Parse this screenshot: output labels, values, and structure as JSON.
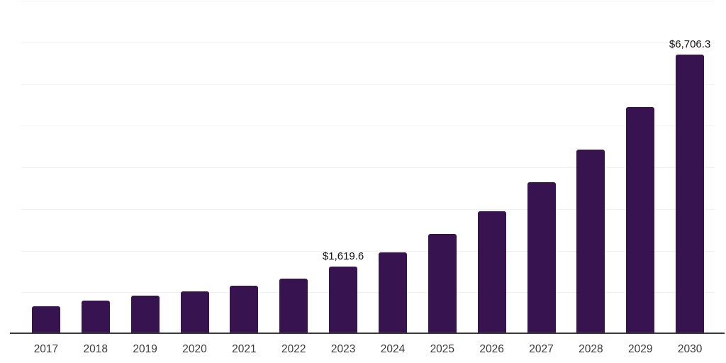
{
  "chart_data": {
    "type": "bar",
    "categories": [
      "2017",
      "2018",
      "2019",
      "2020",
      "2021",
      "2022",
      "2023",
      "2024",
      "2025",
      "2026",
      "2027",
      "2028",
      "2029",
      "2030"
    ],
    "values": [
      665,
      795,
      920,
      1025,
      1155,
      1335,
      1619.6,
      1960,
      2400,
      2940,
      3640,
      4420,
      5440,
      6706.3
    ],
    "value_labels": {
      "2023": "$1,619.6",
      "2030": "$6,706.3"
    },
    "title": "",
    "xlabel": "",
    "ylabel": "",
    "ylim": [
      0,
      8000
    ],
    "gridline_step": 1000,
    "grid": true,
    "legend": "none",
    "colors": {
      "bar": "#37134F",
      "axis": "#3a3a3a",
      "gridline": "#f2f2f2",
      "value_label": "#111111",
      "tick_label": "#3b3b3b",
      "background": "#ffffff"
    }
  }
}
